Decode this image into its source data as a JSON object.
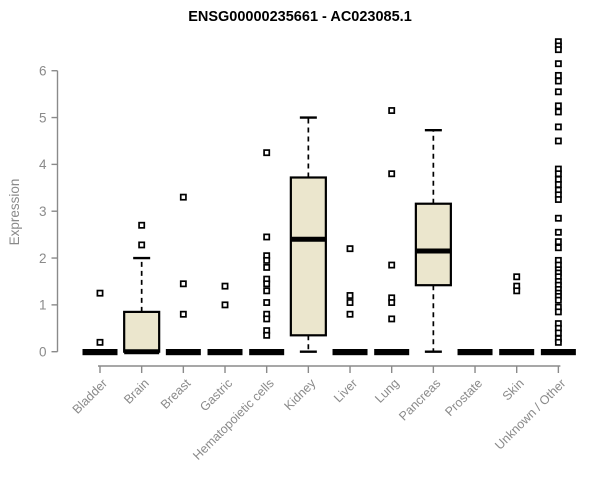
{
  "chart_data": {
    "type": "boxplot",
    "title": "ENSG00000235661 - AC023085.1",
    "ylabel": "Expression",
    "xlabel": "",
    "ylim": [
      0,
      6.7
    ],
    "yticks": [
      0,
      1,
      2,
      3,
      4,
      5,
      6
    ],
    "grid": false,
    "legend": "none",
    "categories": [
      "Bladder",
      "Brain",
      "Breast",
      "Gastric",
      "Hematopoietic cells",
      "Kidney",
      "Liver",
      "Lung",
      "Pancreas",
      "Prostate",
      "Skin",
      "Unknown / Other"
    ],
    "boxes": [
      {
        "category": "Bladder",
        "q1": 0,
        "median": 0,
        "q3": 0,
        "whisker_low": 0,
        "whisker_high": 0,
        "outliers": [
          1.25,
          0.2
        ]
      },
      {
        "category": "Brain",
        "q1": 0,
        "median": 0,
        "q3": 0.85,
        "whisker_low": 0,
        "whisker_high": 2.0,
        "outliers": [
          2.7,
          2.28
        ]
      },
      {
        "category": "Breast",
        "q1": 0,
        "median": 0,
        "q3": 0,
        "whisker_low": 0,
        "whisker_high": 0,
        "outliers": [
          3.3,
          1.45,
          0.8
        ]
      },
      {
        "category": "Gastric",
        "q1": 0,
        "median": 0,
        "q3": 0,
        "whisker_low": 0,
        "whisker_high": 0,
        "outliers": [
          1.4,
          1.0
        ]
      },
      {
        "category": "Hematopoietic cells",
        "q1": 0,
        "median": 0,
        "q3": 0,
        "whisker_low": 0,
        "whisker_high": 0,
        "outliers": [
          4.25,
          2.45,
          2.05,
          1.95,
          1.8,
          1.55,
          1.45,
          1.3,
          1.05,
          0.8,
          0.7,
          0.45,
          0.35
        ]
      },
      {
        "category": "Kidney",
        "q1": 0.35,
        "median": 2.4,
        "q3": 3.72,
        "whisker_low": 0,
        "whisker_high": 5.0,
        "outliers": []
      },
      {
        "category": "Liver",
        "q1": 0,
        "median": 0,
        "q3": 0,
        "whisker_low": 0,
        "whisker_high": 0,
        "outliers": [
          2.2,
          1.2,
          1.05,
          0.8
        ]
      },
      {
        "category": "Lung",
        "q1": 0,
        "median": 0,
        "q3": 0,
        "whisker_low": 0,
        "whisker_high": 0,
        "outliers": [
          5.15,
          3.8,
          1.85,
          1.15,
          1.05,
          0.7
        ]
      },
      {
        "category": "Pancreas",
        "q1": 1.42,
        "median": 2.15,
        "q3": 3.16,
        "whisker_low": 0,
        "whisker_high": 4.73,
        "outliers": []
      },
      {
        "category": "Prostate",
        "q1": 0,
        "median": 0,
        "q3": 0,
        "whisker_low": 0,
        "whisker_high": 0,
        "outliers": []
      },
      {
        "category": "Skin",
        "q1": 0,
        "median": 0,
        "q3": 0,
        "whisker_low": 0,
        "whisker_high": 0,
        "outliers": [
          1.6,
          1.4,
          1.3
        ]
      },
      {
        "category": "Unknown / Other",
        "q1": 0,
        "median": 0,
        "q3": 0,
        "whisker_low": 0,
        "whisker_high": 0,
        "outliers": [
          6.62,
          6.53,
          6.45,
          6.15,
          5.9,
          5.78,
          5.55,
          5.25,
          5.12,
          4.8,
          4.5,
          3.9,
          3.8,
          3.68,
          3.57,
          3.45,
          3.35,
          3.25,
          2.85,
          2.55,
          2.35,
          2.22,
          1.95,
          1.85,
          1.75,
          1.68,
          1.6,
          1.5,
          1.42,
          1.33,
          1.25,
          1.18,
          1.1,
          0.95,
          0.85,
          0.6,
          0.5,
          0.4,
          0.28,
          0.2
        ]
      }
    ],
    "colors": {
      "box_fill": "#ebe6cd",
      "box_stroke": "#000000",
      "median": "#000000",
      "outlier_stroke": "#000000",
      "outlier_fill": "#ffffff",
      "axis": "#8a8a8a",
      "tick_label": "#8a8a8a",
      "title": "#000000",
      "background": "#ffffff"
    }
  }
}
